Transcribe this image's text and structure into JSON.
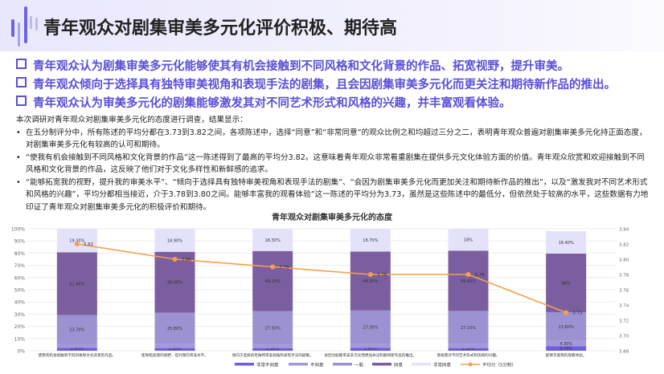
{
  "header": {
    "title": "青年观众对剧集审美多元化评价积极、期待高"
  },
  "points": [
    "青年观众认为剧集审美多元化能够使其有机会接触到不同风格和文化背景的作品、拓宽视野，提升审美。",
    "青年观众倾向于选择具有独特审美视角和表现手法的剧集，且会因剧集审美多元化而更关注和期待新作品的推出。",
    "青年观众认为审美多元化的剧集能够激发其对不同艺术形式和风格的兴趣，并丰富观看体验。"
  ],
  "body": {
    "intro": "本次调研对青年观众对剧集审美多元化的态度进行调查，结果显示：",
    "bullets": [
      "在五分制评分中，所有陈述的平均分都在3.73到3.82之间，各项陈述中，选择“同意”和“非常同意”的观众比例之和均超过三分之二，表明青年观众普遍对剧集审美多元化持正面态度，对剧集审美多元化有较高的认可和期待。",
      "“使我有机会接触到不同风格和文化背景的作品”这一陈述得到了最高的平均分3.82。这意味着青年观众非常看重剧集在提供多元文化体验方面的价值。青年观众欣赏和欢迎接触到不同风格和文化背景的作品，这反映了他们对于文化多样性和新鲜感的追求。",
      "“能够拓宽我的视野，提升我的审美水平”、“倾向于选择具有独特审美视角和表现手法的剧集”、“会因为剧集审美多元化而更加关注和期待新作品的推出”，以及“激发我对不同艺术形式和风格的兴趣”，平均分都相当接近，介于3.78到3.80之间。能够丰富我的观看体验”这一陈述的平均分为3.73，虽然是这些陈述中的最低分，但依然处于较高的水平，这些数据有力地印证了青年观众对剧集审美多元化的积极评价和期待。"
    ]
  },
  "chart_data": {
    "type": "bar",
    "stacked": true,
    "title": "青年观众对剧集审美多元化的态度",
    "categories": [
      "使我有机会接触到不同风格和文化背景的作品。",
      "能够拓宽我的视野，提升我的审美水平。",
      "倾向于选择具有独特审美视角和表现手法的剧集。",
      "会因为剧集审美多元化而更加关注和期待新作品的推出。",
      "激发我对不同艺术形式和风格的兴趣。",
      "能够丰富我的观看体验。"
    ],
    "ylim": [
      0,
      100
    ],
    "y2lim": [
      3.68,
      3.84
    ],
    "yticks": [
      "0%",
      "10%",
      "20%",
      "30%",
      "40%",
      "50%",
      "60%",
      "70%",
      "80%",
      "90%",
      "100%"
    ],
    "y2ticks": [
      "3.68",
      "3.70",
      "3.72",
      "3.74",
      "3.76",
      "3.78",
      "3.80",
      "3.82",
      "3.84"
    ],
    "series": [
      {
        "name": "非常不同意",
        "color": "#6b5fdc",
        "values": [
          2.4,
          2.2,
          2.2,
          2.4,
          2.2,
          3.7
        ],
        "labels": [
          "2.40%",
          "2.20%",
          "2.20%",
          "2.40%",
          "2.20%",
          "3.70%"
        ]
      },
      {
        "name": "不同意",
        "color": "#a398db",
        "values": [
          3.2,
          3.2,
          2.8,
          3.3,
          3.3,
          4.3
        ],
        "labels": [
          "3.20%",
          "3.20%",
          "2.80%",
          "3.30%",
          "3.30%",
          "4.30%"
        ]
      },
      {
        "name": "一般",
        "color": "#9c92d2",
        "values": [
          23.7,
          25.8,
          27.5,
          27.3,
          27.1,
          23.6
        ],
        "labels": [
          "23.70%",
          "25.80%",
          "27.50%",
          "27.30%",
          "27.10%",
          "23.60%"
        ]
      },
      {
        "name": "同意",
        "color": "#7b5e9f",
        "values": [
          51.4,
          49.9,
          49.2,
          48.3,
          49.4,
          48
        ],
        "labels": [
          "51.40%",
          "49.90%",
          "49.20%",
          "48.30%",
          "49.40%",
          "48%"
        ]
      },
      {
        "name": "非常同意",
        "color": "#e4e1fa",
        "values": [
          19.3,
          18.9,
          18.3,
          18.7,
          18,
          18.4
        ],
        "labels": [
          "19.30%",
          "18.90%",
          "18.30%",
          "18.70%",
          "18%",
          "18.40%"
        ]
      }
    ],
    "line": {
      "name": "平均分（5分制）",
      "color": "#f5a04a",
      "values": [
        3.82,
        3.8,
        3.79,
        3.78,
        3.78,
        3.73
      ],
      "labels": [
        "3.82",
        "3.80",
        "3.79",
        "3.78",
        "3.78",
        "3.73"
      ]
    },
    "grid": true,
    "legend": "bottom"
  }
}
